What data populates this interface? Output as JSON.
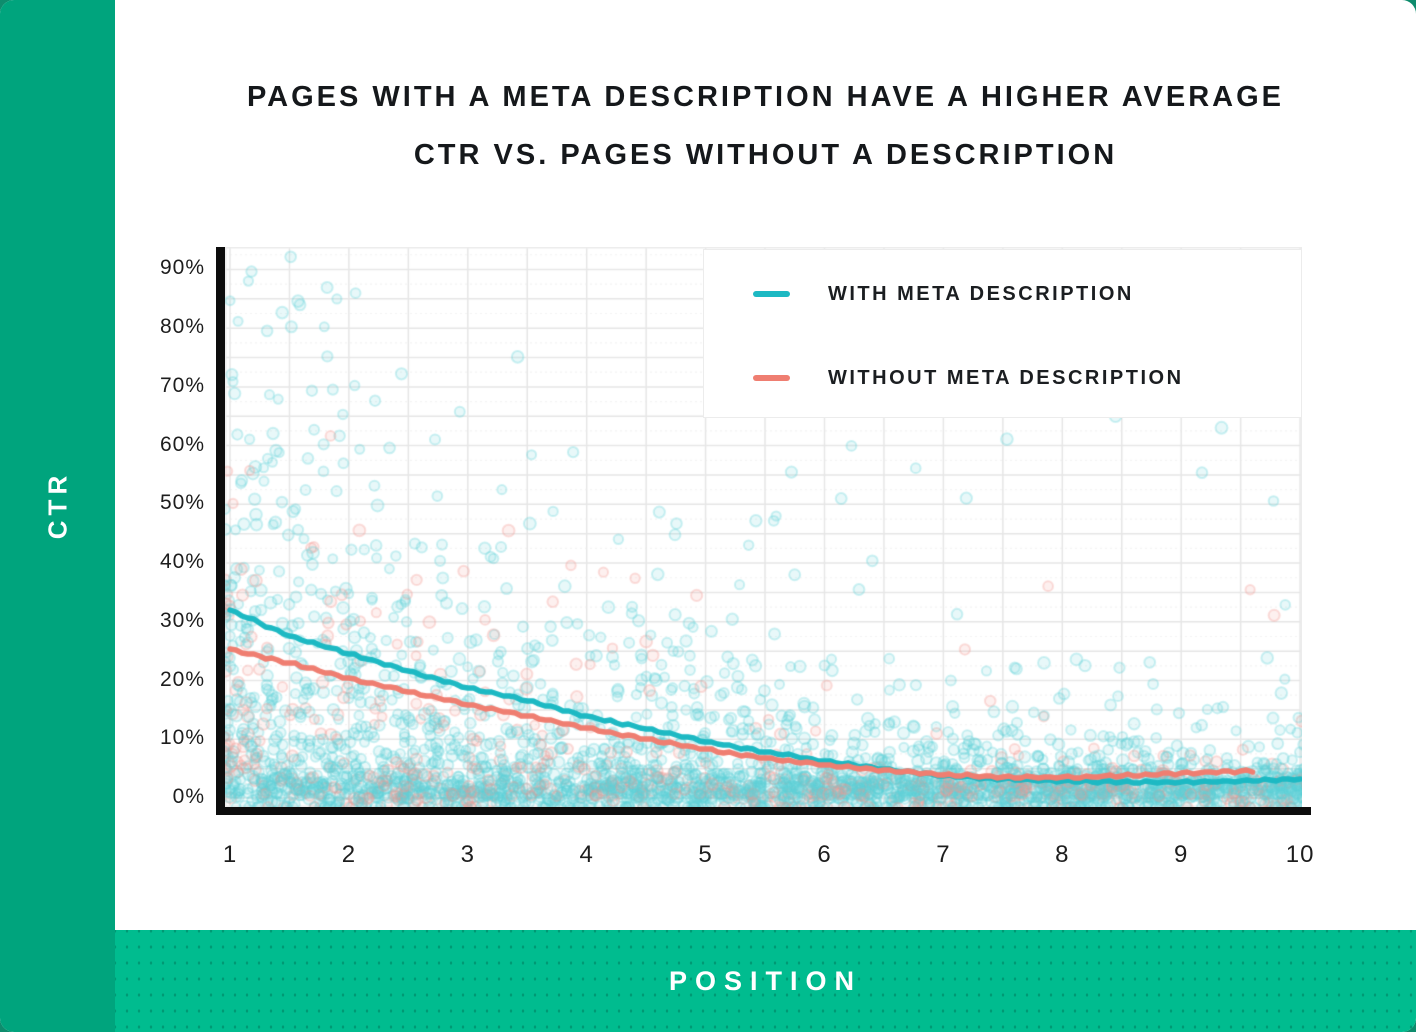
{
  "page": {
    "background": "#0e8c6d",
    "card_background": "#ffffff"
  },
  "sidebar": {
    "label": "CTR",
    "background": "#00a47d",
    "text_color": "#ffffff"
  },
  "footer_bar": {
    "label": "POSITION",
    "background": "#00bc8f",
    "text_color": "#ffffff"
  },
  "title": {
    "line1": "PAGES WITH A META DESCRIPTION HAVE A HIGHER AVERAGE",
    "line2": "CTR VS. PAGES WITHOUT A DESCRIPTION",
    "color": "#15181b"
  },
  "chart_data": {
    "type": "scatter",
    "title": "Pages with a meta description have a higher average CTR vs. pages without a description",
    "xlabel": "POSITION",
    "ylabel": "CTR",
    "xlim": [
      0.95,
      10.1
    ],
    "ylim": [
      -2,
      94
    ],
    "x_ticks": [
      {
        "label": "1",
        "value": 1
      },
      {
        "label": "2",
        "value": 2
      },
      {
        "label": "3",
        "value": 3
      },
      {
        "label": "4",
        "value": 4
      },
      {
        "label": "5",
        "value": 5
      },
      {
        "label": "6",
        "value": 6
      },
      {
        "label": "7",
        "value": 7
      },
      {
        "label": "8",
        "value": 8
      },
      {
        "label": "9",
        "value": 9
      },
      {
        "label": "10",
        "value": 10
      }
    ],
    "y_ticks": [
      {
        "label": "90%",
        "value": 90
      },
      {
        "label": "80%",
        "value": 80
      },
      {
        "label": "70%",
        "value": 70
      },
      {
        "label": "60%",
        "value": 60
      },
      {
        "label": "50%",
        "value": 50
      },
      {
        "label": "40%",
        "value": 40
      },
      {
        "label": "30%",
        "value": 30
      },
      {
        "label": "20%",
        "value": 20
      },
      {
        "label": "10%",
        "value": 10
      },
      {
        "label": "0%",
        "value": 0
      }
    ],
    "grid": {
      "on": true,
      "x_step": 0.5,
      "y_step": 5,
      "y_minor_step": 2.5,
      "color": "#e6e6e6",
      "minor_color": "#f3f3f3",
      "border_color": "#ececec"
    },
    "axis_color": "#0d0d0d",
    "legend": {
      "position": "top-right",
      "entries": [
        "WITH META DESCRIPTION",
        "WITHOUT META DESCRIPTION"
      ]
    },
    "series": [
      {
        "name": "WITH META DESCRIPTION",
        "line_color": "#1db9c3",
        "point_color": "#5ecfd8",
        "trend_x": [
          1,
          1.5,
          2,
          2.5,
          3,
          3.5,
          4,
          4.5,
          5,
          5.5,
          6,
          6.5,
          7,
          7.5,
          8,
          8.5,
          9,
          9.5,
          10
        ],
        "trend_y": [
          32.0,
          27.6,
          24.6,
          21.6,
          18.8,
          16.6,
          13.9,
          11.8,
          9.6,
          7.9,
          6.3,
          4.9,
          3.8,
          3.2,
          2.9,
          2.7,
          2.7,
          2.9,
          3.2
        ]
      },
      {
        "name": "WITHOUT META DESCRIPTION",
        "line_color": "#ef7e71",
        "point_color": "#f2968e",
        "trend_x": [
          1,
          1.5,
          2,
          2.5,
          3,
          3.5,
          4,
          4.5,
          5,
          5.5,
          6,
          6.5,
          7,
          7.5,
          8,
          8.5,
          9,
          9.6
        ],
        "trend_y": [
          25.3,
          23.0,
          20.4,
          18.1,
          15.9,
          14.0,
          11.9,
          10.0,
          8.3,
          6.8,
          5.6,
          4.7,
          4.0,
          3.6,
          3.5,
          3.8,
          4.2,
          4.6
        ]
      }
    ],
    "scatter_clouds": [
      {
        "series": 0,
        "count": 1500,
        "x_pow": 1.35,
        "y_dist": "exp",
        "scale_a": 26,
        "scale_tau": 2.9,
        "scale_c": 3.0,
        "y_cap": 93
      },
      {
        "series": 0,
        "count": 1300,
        "x_pow": 0.85,
        "y_dist": "gauss",
        "mean": 1.1,
        "sigma": 2.1,
        "y_min": -1.6
      },
      {
        "series": 0,
        "count": 45,
        "x_pow": 1.0,
        "y_dist": "uniform",
        "y_lo": 5,
        "y_hi": 70
      },
      {
        "series": 1,
        "count": 320,
        "x_pow": 1.6,
        "y_dist": "exp",
        "scale_a": 18,
        "scale_tau": 2.4,
        "scale_c": 2.5,
        "y_cap": 68
      },
      {
        "series": 1,
        "count": 260,
        "x_pow": 0.9,
        "y_dist": "gauss",
        "mean": 1.1,
        "sigma": 1.7,
        "y_min": -1.6
      },
      {
        "series": 1,
        "count": 12,
        "x_pow": 1.0,
        "y_dist": "uniform",
        "y_lo": 5,
        "y_hi": 50
      }
    ],
    "seed": 1337,
    "point_style": {
      "r_min": 4.5,
      "r_max": 6,
      "fill_alpha": 0.14,
      "ring_alpha": 0.3,
      "ring_width": 2
    }
  }
}
